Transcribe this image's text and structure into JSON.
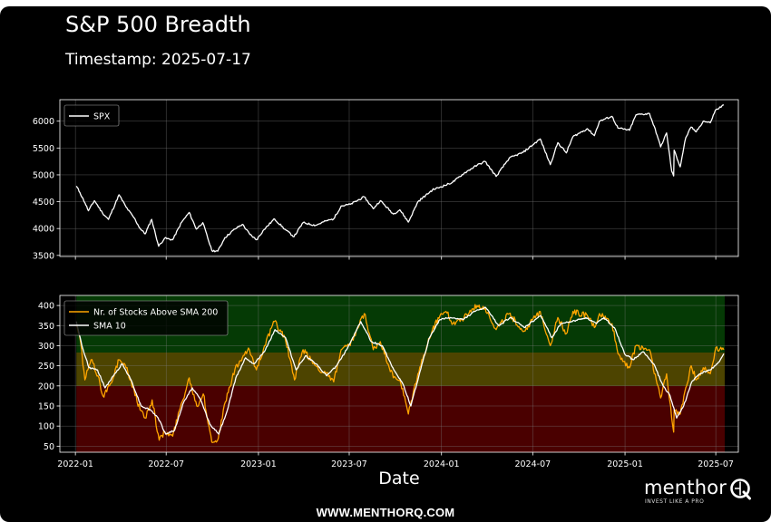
{
  "header": {
    "title": "S&P 500 Breadth",
    "timestamp_label": "Timestamp: 2025-07-17"
  },
  "footer": {
    "brand": "menthor",
    "tagline": "INVEST LIKE A PRO",
    "website": "WWW.MENTHORQ.COM"
  },
  "chart_data": [
    {
      "type": "line",
      "title": "",
      "xlabel": "",
      "ylabel": "",
      "x_ticks": [
        "2022-01",
        "2022-07",
        "2023-01",
        "2023-07",
        "2024-01",
        "2024-07",
        "2025-01",
        "2025-07"
      ],
      "y_ticks": [
        3500,
        4000,
        4500,
        5000,
        5500,
        6000
      ],
      "xlim": [
        "2021-12-01",
        "2025-08-15"
      ],
      "ylim": [
        3480,
        6400
      ],
      "grid": true,
      "legend": "top-left",
      "series": [
        {
          "name": "SPX",
          "color": "#ffffff",
          "points": [
            [
              "2022-01-03",
              4790
            ],
            [
              "2022-01-10",
              4670
            ],
            [
              "2022-01-20",
              4480
            ],
            [
              "2022-01-27",
              4330
            ],
            [
              "2022-02-08",
              4520
            ],
            [
              "2022-02-24",
              4290
            ],
            [
              "2022-03-08",
              4170
            ],
            [
              "2022-03-29",
              4630
            ],
            [
              "2022-04-12",
              4400
            ],
            [
              "2022-04-28",
              4200
            ],
            [
              "2022-05-10",
              4000
            ],
            [
              "2022-05-20",
              3900
            ],
            [
              "2022-06-02",
              4170
            ],
            [
              "2022-06-16",
              3670
            ],
            [
              "2022-06-28",
              3820
            ],
            [
              "2022-07-14",
              3790
            ],
            [
              "2022-08-01",
              4120
            ],
            [
              "2022-08-16",
              4300
            ],
            [
              "2022-08-30",
              3990
            ],
            [
              "2022-09-12",
              4110
            ],
            [
              "2022-09-30",
              3590
            ],
            [
              "2022-10-12",
              3580
            ],
            [
              "2022-10-26",
              3830
            ],
            [
              "2022-11-15",
              3990
            ],
            [
              "2022-11-30",
              4080
            ],
            [
              "2022-12-15",
              3890
            ],
            [
              "2022-12-28",
              3790
            ],
            [
              "2023-01-12",
              3980
            ],
            [
              "2023-02-02",
              4180
            ],
            [
              "2023-02-22",
              3990
            ],
            [
              "2023-03-13",
              3850
            ],
            [
              "2023-03-31",
              4110
            ],
            [
              "2023-04-25",
              4060
            ],
            [
              "2023-05-15",
              4140
            ],
            [
              "2023-05-31",
              4180
            ],
            [
              "2023-06-15",
              4420
            ],
            [
              "2023-07-03",
              4450
            ],
            [
              "2023-07-31",
              4590
            ],
            [
              "2023-08-18",
              4370
            ],
            [
              "2023-09-01",
              4520
            ],
            [
              "2023-09-27",
              4270
            ],
            [
              "2023-10-10",
              4350
            ],
            [
              "2023-10-27",
              4120
            ],
            [
              "2023-11-15",
              4500
            ],
            [
              "2023-12-14",
              4720
            ],
            [
              "2023-12-29",
              4770
            ],
            [
              "2024-01-23",
              4860
            ],
            [
              "2024-02-15",
              5030
            ],
            [
              "2024-03-12",
              5180
            ],
            [
              "2024-03-28",
              5250
            ],
            [
              "2024-04-19",
              4970
            ],
            [
              "2024-05-15",
              5310
            ],
            [
              "2024-06-12",
              5420
            ],
            [
              "2024-07-16",
              5670
            ],
            [
              "2024-08-05",
              5190
            ],
            [
              "2024-08-20",
              5600
            ],
            [
              "2024-09-06",
              5410
            ],
            [
              "2024-09-19",
              5710
            ],
            [
              "2024-10-18",
              5860
            ],
            [
              "2024-11-01",
              5730
            ],
            [
              "2024-11-11",
              6000
            ],
            [
              "2024-12-06",
              6090
            ],
            [
              "2024-12-18",
              5870
            ],
            [
              "2025-01-10",
              5830
            ],
            [
              "2025-01-23",
              6120
            ],
            [
              "2025-02-19",
              6140
            ],
            [
              "2025-03-06",
              5740
            ],
            [
              "2025-03-13",
              5520
            ],
            [
              "2025-03-25",
              5780
            ],
            [
              "2025-04-04",
              5070
            ],
            [
              "2025-04-08",
              4980
            ],
            [
              "2025-04-09",
              5460
            ],
            [
              "2025-04-21",
              5150
            ],
            [
              "2025-05-02",
              5690
            ],
            [
              "2025-05-13",
              5890
            ],
            [
              "2025-05-23",
              5800
            ],
            [
              "2025-06-06",
              6000
            ],
            [
              "2025-06-20",
              5970
            ],
            [
              "2025-06-30",
              6200
            ],
            [
              "2025-07-17",
              6300
            ]
          ]
        }
      ]
    },
    {
      "type": "line",
      "title": "",
      "xlabel": "Date",
      "ylabel": "",
      "x_ticks": [
        "2022-01",
        "2022-07",
        "2023-01",
        "2023-07",
        "2024-01",
        "2024-07",
        "2025-01",
        "2025-07"
      ],
      "y_ticks": [
        50,
        100,
        150,
        200,
        250,
        300,
        350,
        400
      ],
      "xlim": [
        "2021-12-01",
        "2025-08-15"
      ],
      "ylim": [
        35,
        425
      ],
      "grid": true,
      "legend": "top-left",
      "zones": [
        {
          "from": 0,
          "to": 200,
          "color": "#4a0000"
        },
        {
          "from": 200,
          "to": 283,
          "color": "#4d4400"
        },
        {
          "from": 283,
          "to": 425,
          "color": "#053a05"
        }
      ],
      "series": [
        {
          "name": "Nr. of Stocks Above SMA 200",
          "color": "#ffa500",
          "points": [
            [
              "2022-01-03",
              350
            ],
            [
              "2022-01-10",
              320
            ],
            [
              "2022-01-20",
              215
            ],
            [
              "2022-02-01",
              265
            ],
            [
              "2022-02-15",
              225
            ],
            [
              "2022-02-25",
              175
            ],
            [
              "2022-03-10",
              200
            ],
            [
              "2022-03-29",
              265
            ],
            [
              "2022-04-12",
              245
            ],
            [
              "2022-04-28",
              190
            ],
            [
              "2022-05-10",
              140
            ],
            [
              "2022-05-20",
              120
            ],
            [
              "2022-06-03",
              165
            ],
            [
              "2022-06-17",
              65
            ],
            [
              "2022-06-28",
              85
            ],
            [
              "2022-07-14",
              75
            ],
            [
              "2022-07-29",
              145
            ],
            [
              "2022-08-16",
              220
            ],
            [
              "2022-08-31",
              150
            ],
            [
              "2022-09-13",
              180
            ],
            [
              "2022-09-30",
              60
            ],
            [
              "2022-10-13",
              70
            ],
            [
              "2022-10-27",
              160
            ],
            [
              "2022-11-15",
              240
            ],
            [
              "2022-11-30",
              270
            ],
            [
              "2022-12-14",
              290
            ],
            [
              "2022-12-28",
              240
            ],
            [
              "2023-01-13",
              300
            ],
            [
              "2023-02-02",
              360
            ],
            [
              "2023-02-23",
              320
            ],
            [
              "2023-03-14",
              215
            ],
            [
              "2023-03-31",
              290
            ],
            [
              "2023-04-25",
              250
            ],
            [
              "2023-05-15",
              230
            ],
            [
              "2023-05-31",
              210
            ],
            [
              "2023-06-15",
              290
            ],
            [
              "2023-07-03",
              300
            ],
            [
              "2023-07-31",
              380
            ],
            [
              "2023-08-18",
              290
            ],
            [
              "2023-09-01",
              310
            ],
            [
              "2023-09-27",
              220
            ],
            [
              "2023-10-10",
              215
            ],
            [
              "2023-10-27",
              130
            ],
            [
              "2023-11-15",
              230
            ],
            [
              "2023-12-14",
              340
            ],
            [
              "2023-12-29",
              375
            ],
            [
              "2024-01-10",
              385
            ],
            [
              "2024-01-24",
              355
            ],
            [
              "2024-02-15",
              370
            ],
            [
              "2024-03-12",
              400
            ],
            [
              "2024-03-28",
              395
            ],
            [
              "2024-04-19",
              340
            ],
            [
              "2024-05-15",
              380
            ],
            [
              "2024-06-12",
              335
            ],
            [
              "2024-07-16",
              385
            ],
            [
              "2024-08-05",
              300
            ],
            [
              "2024-08-20",
              370
            ],
            [
              "2024-09-06",
              330
            ],
            [
              "2024-09-19",
              385
            ],
            [
              "2024-10-18",
              375
            ],
            [
              "2024-11-01",
              345
            ],
            [
              "2024-11-11",
              380
            ],
            [
              "2024-12-06",
              355
            ],
            [
              "2024-12-18",
              280
            ],
            [
              "2025-01-10",
              245
            ],
            [
              "2025-01-23",
              300
            ],
            [
              "2025-02-19",
              290
            ],
            [
              "2025-03-06",
              205
            ],
            [
              "2025-03-13",
              170
            ],
            [
              "2025-03-25",
              230
            ],
            [
              "2025-04-04",
              120
            ],
            [
              "2025-04-08",
              85
            ],
            [
              "2025-04-09",
              140
            ],
            [
              "2025-04-21",
              130
            ],
            [
              "2025-05-02",
              195
            ],
            [
              "2025-05-13",
              250
            ],
            [
              "2025-05-23",
              215
            ],
            [
              "2025-06-06",
              245
            ],
            [
              "2025-06-20",
              230
            ],
            [
              "2025-07-01",
              295
            ],
            [
              "2025-07-17",
              290
            ]
          ]
        },
        {
          "name": "SMA 10",
          "color": "#ffffff",
          "points": [
            [
              "2022-01-03",
              360
            ],
            [
              "2022-01-14",
              300
            ],
            [
              "2022-01-28",
              245
            ],
            [
              "2022-02-14",
              240
            ],
            [
              "2022-03-01",
              195
            ],
            [
              "2022-03-18",
              225
            ],
            [
              "2022-04-04",
              255
            ],
            [
              "2022-04-22",
              215
            ],
            [
              "2022-05-12",
              150
            ],
            [
              "2022-05-31",
              140
            ],
            [
              "2022-06-15",
              120
            ],
            [
              "2022-06-30",
              80
            ],
            [
              "2022-07-18",
              90
            ],
            [
              "2022-08-05",
              160
            ],
            [
              "2022-08-22",
              195
            ],
            [
              "2022-09-08",
              165
            ],
            [
              "2022-09-26",
              105
            ],
            [
              "2022-10-14",
              80
            ],
            [
              "2022-10-31",
              140
            ],
            [
              "2022-11-17",
              220
            ],
            [
              "2022-12-06",
              270
            ],
            [
              "2022-12-23",
              255
            ],
            [
              "2023-01-13",
              285
            ],
            [
              "2023-02-03",
              340
            ],
            [
              "2023-02-24",
              320
            ],
            [
              "2023-03-17",
              240
            ],
            [
              "2023-04-05",
              275
            ],
            [
              "2023-04-25",
              255
            ],
            [
              "2023-05-17",
              225
            ],
            [
              "2023-06-06",
              250
            ],
            [
              "2023-06-28",
              295
            ],
            [
              "2023-07-24",
              360
            ],
            [
              "2023-08-14",
              310
            ],
            [
              "2023-09-05",
              300
            ],
            [
              "2023-09-28",
              240
            ],
            [
              "2023-10-16",
              205
            ],
            [
              "2023-11-01",
              150
            ],
            [
              "2023-11-17",
              225
            ],
            [
              "2023-12-08",
              320
            ],
            [
              "2023-12-29",
              365
            ],
            [
              "2024-01-19",
              370
            ],
            [
              "2024-02-13",
              365
            ],
            [
              "2024-03-07",
              385
            ],
            [
              "2024-03-29",
              395
            ],
            [
              "2024-04-24",
              350
            ],
            [
              "2024-05-17",
              370
            ],
            [
              "2024-06-14",
              345
            ],
            [
              "2024-07-17",
              375
            ],
            [
              "2024-08-08",
              320
            ],
            [
              "2024-08-26",
              355
            ],
            [
              "2024-09-16",
              360
            ],
            [
              "2024-10-15",
              370
            ],
            [
              "2024-11-05",
              355
            ],
            [
              "2024-11-20",
              370
            ],
            [
              "2024-12-11",
              345
            ],
            [
              "2024-12-31",
              280
            ],
            [
              "2025-01-17",
              265
            ],
            [
              "2025-02-06",
              285
            ],
            [
              "2025-02-27",
              255
            ],
            [
              "2025-03-18",
              200
            ],
            [
              "2025-04-01",
              175
            ],
            [
              "2025-04-14",
              120
            ],
            [
              "2025-04-28",
              150
            ],
            [
              "2025-05-14",
              210
            ],
            [
              "2025-05-30",
              230
            ],
            [
              "2025-06-20",
              240
            ],
            [
              "2025-07-08",
              260
            ],
            [
              "2025-07-17",
              280
            ]
          ]
        }
      ]
    }
  ]
}
